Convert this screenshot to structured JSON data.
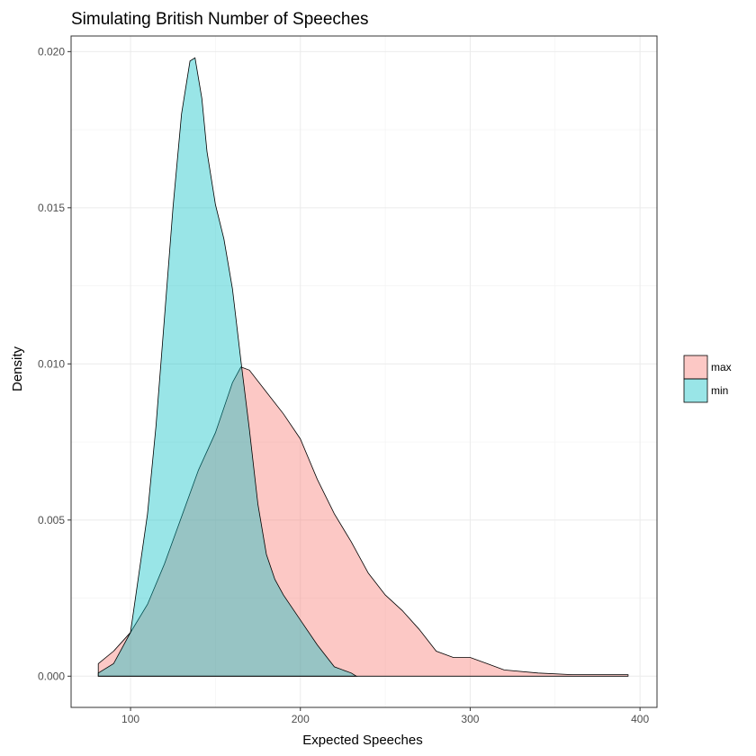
{
  "chart_data": {
    "type": "area",
    "title": "Simulating British Number of Speeches",
    "xlabel": "Expected Speeches",
    "ylabel": "Density",
    "xlim": [
      65,
      410
    ],
    "ylim": [
      -0.001,
      0.0205
    ],
    "x_ticks": [
      100,
      200,
      300,
      400
    ],
    "y_ticks": [
      0.0,
      0.005,
      0.01,
      0.015,
      0.02
    ],
    "y_tick_labels": [
      "0.000",
      "0.005",
      "0.010",
      "0.015",
      "0.020"
    ],
    "grid": true,
    "legend_position": "right",
    "series": [
      {
        "name": "max",
        "color": "#F8766D",
        "opacity": 0.4,
        "points": [
          [
            81,
            0.0004
          ],
          [
            90,
            0.0008
          ],
          [
            100,
            0.0014
          ],
          [
            110,
            0.0023
          ],
          [
            120,
            0.0036
          ],
          [
            130,
            0.0051
          ],
          [
            140,
            0.0066
          ],
          [
            150,
            0.0078
          ],
          [
            160,
            0.0094
          ],
          [
            165,
            0.0099
          ],
          [
            170,
            0.0098
          ],
          [
            180,
            0.0091
          ],
          [
            190,
            0.0084
          ],
          [
            200,
            0.0076
          ],
          [
            210,
            0.0063
          ],
          [
            220,
            0.0052
          ],
          [
            230,
            0.0043
          ],
          [
            240,
            0.0033
          ],
          [
            250,
            0.0026
          ],
          [
            260,
            0.0021
          ],
          [
            270,
            0.0015
          ],
          [
            280,
            0.0008
          ],
          [
            290,
            0.0006
          ],
          [
            300,
            0.0006
          ],
          [
            310,
            0.0004
          ],
          [
            320,
            0.0002
          ],
          [
            340,
            0.0001
          ],
          [
            360,
            5e-05
          ],
          [
            393,
            5e-05
          ],
          [
            393,
            0.0
          ]
        ]
      },
      {
        "name": "min",
        "color": "#00BFC4",
        "opacity": 0.4,
        "points": [
          [
            81,
            0.0001
          ],
          [
            90,
            0.0004
          ],
          [
            100,
            0.0014
          ],
          [
            110,
            0.0052
          ],
          [
            115,
            0.008
          ],
          [
            120,
            0.0115
          ],
          [
            125,
            0.015
          ],
          [
            130,
            0.018
          ],
          [
            135,
            0.0197
          ],
          [
            138,
            0.0198
          ],
          [
            142,
            0.0185
          ],
          [
            145,
            0.0168
          ],
          [
            150,
            0.0151
          ],
          [
            155,
            0.014
          ],
          [
            160,
            0.0124
          ],
          [
            165,
            0.0101
          ],
          [
            170,
            0.0079
          ],
          [
            175,
            0.0055
          ],
          [
            180,
            0.0039
          ],
          [
            185,
            0.0031
          ],
          [
            190,
            0.0026
          ],
          [
            200,
            0.0018
          ],
          [
            210,
            0.001
          ],
          [
            220,
            0.0003
          ],
          [
            230,
            0.0001
          ],
          [
            233,
            0.0
          ]
        ]
      }
    ]
  }
}
